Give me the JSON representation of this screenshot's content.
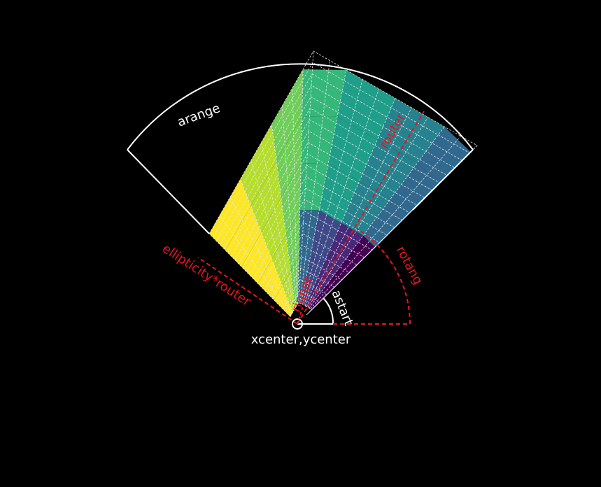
{
  "diagram": {
    "labels": {
      "arange": "arange",
      "router": "router",
      "rotang": "rotang",
      "ellipticity_router": "ellipticity*router",
      "rinner": "rinner",
      "astart": "astart",
      "center": "xcenter,ycenter"
    },
    "colors": {
      "background": "#000000",
      "annotation_white": "#ffffff",
      "annotation_red": "#e8141e",
      "grid_line": "#e6e6e6",
      "viridis": [
        "#440154",
        "#482878",
        "#3e4989",
        "#31688e",
        "#26828e",
        "#1f9e89",
        "#35b779",
        "#6ece58",
        "#b5de2b",
        "#fde725"
      ]
    },
    "sectors": {
      "count": 10,
      "radial_bands": 5
    }
  }
}
